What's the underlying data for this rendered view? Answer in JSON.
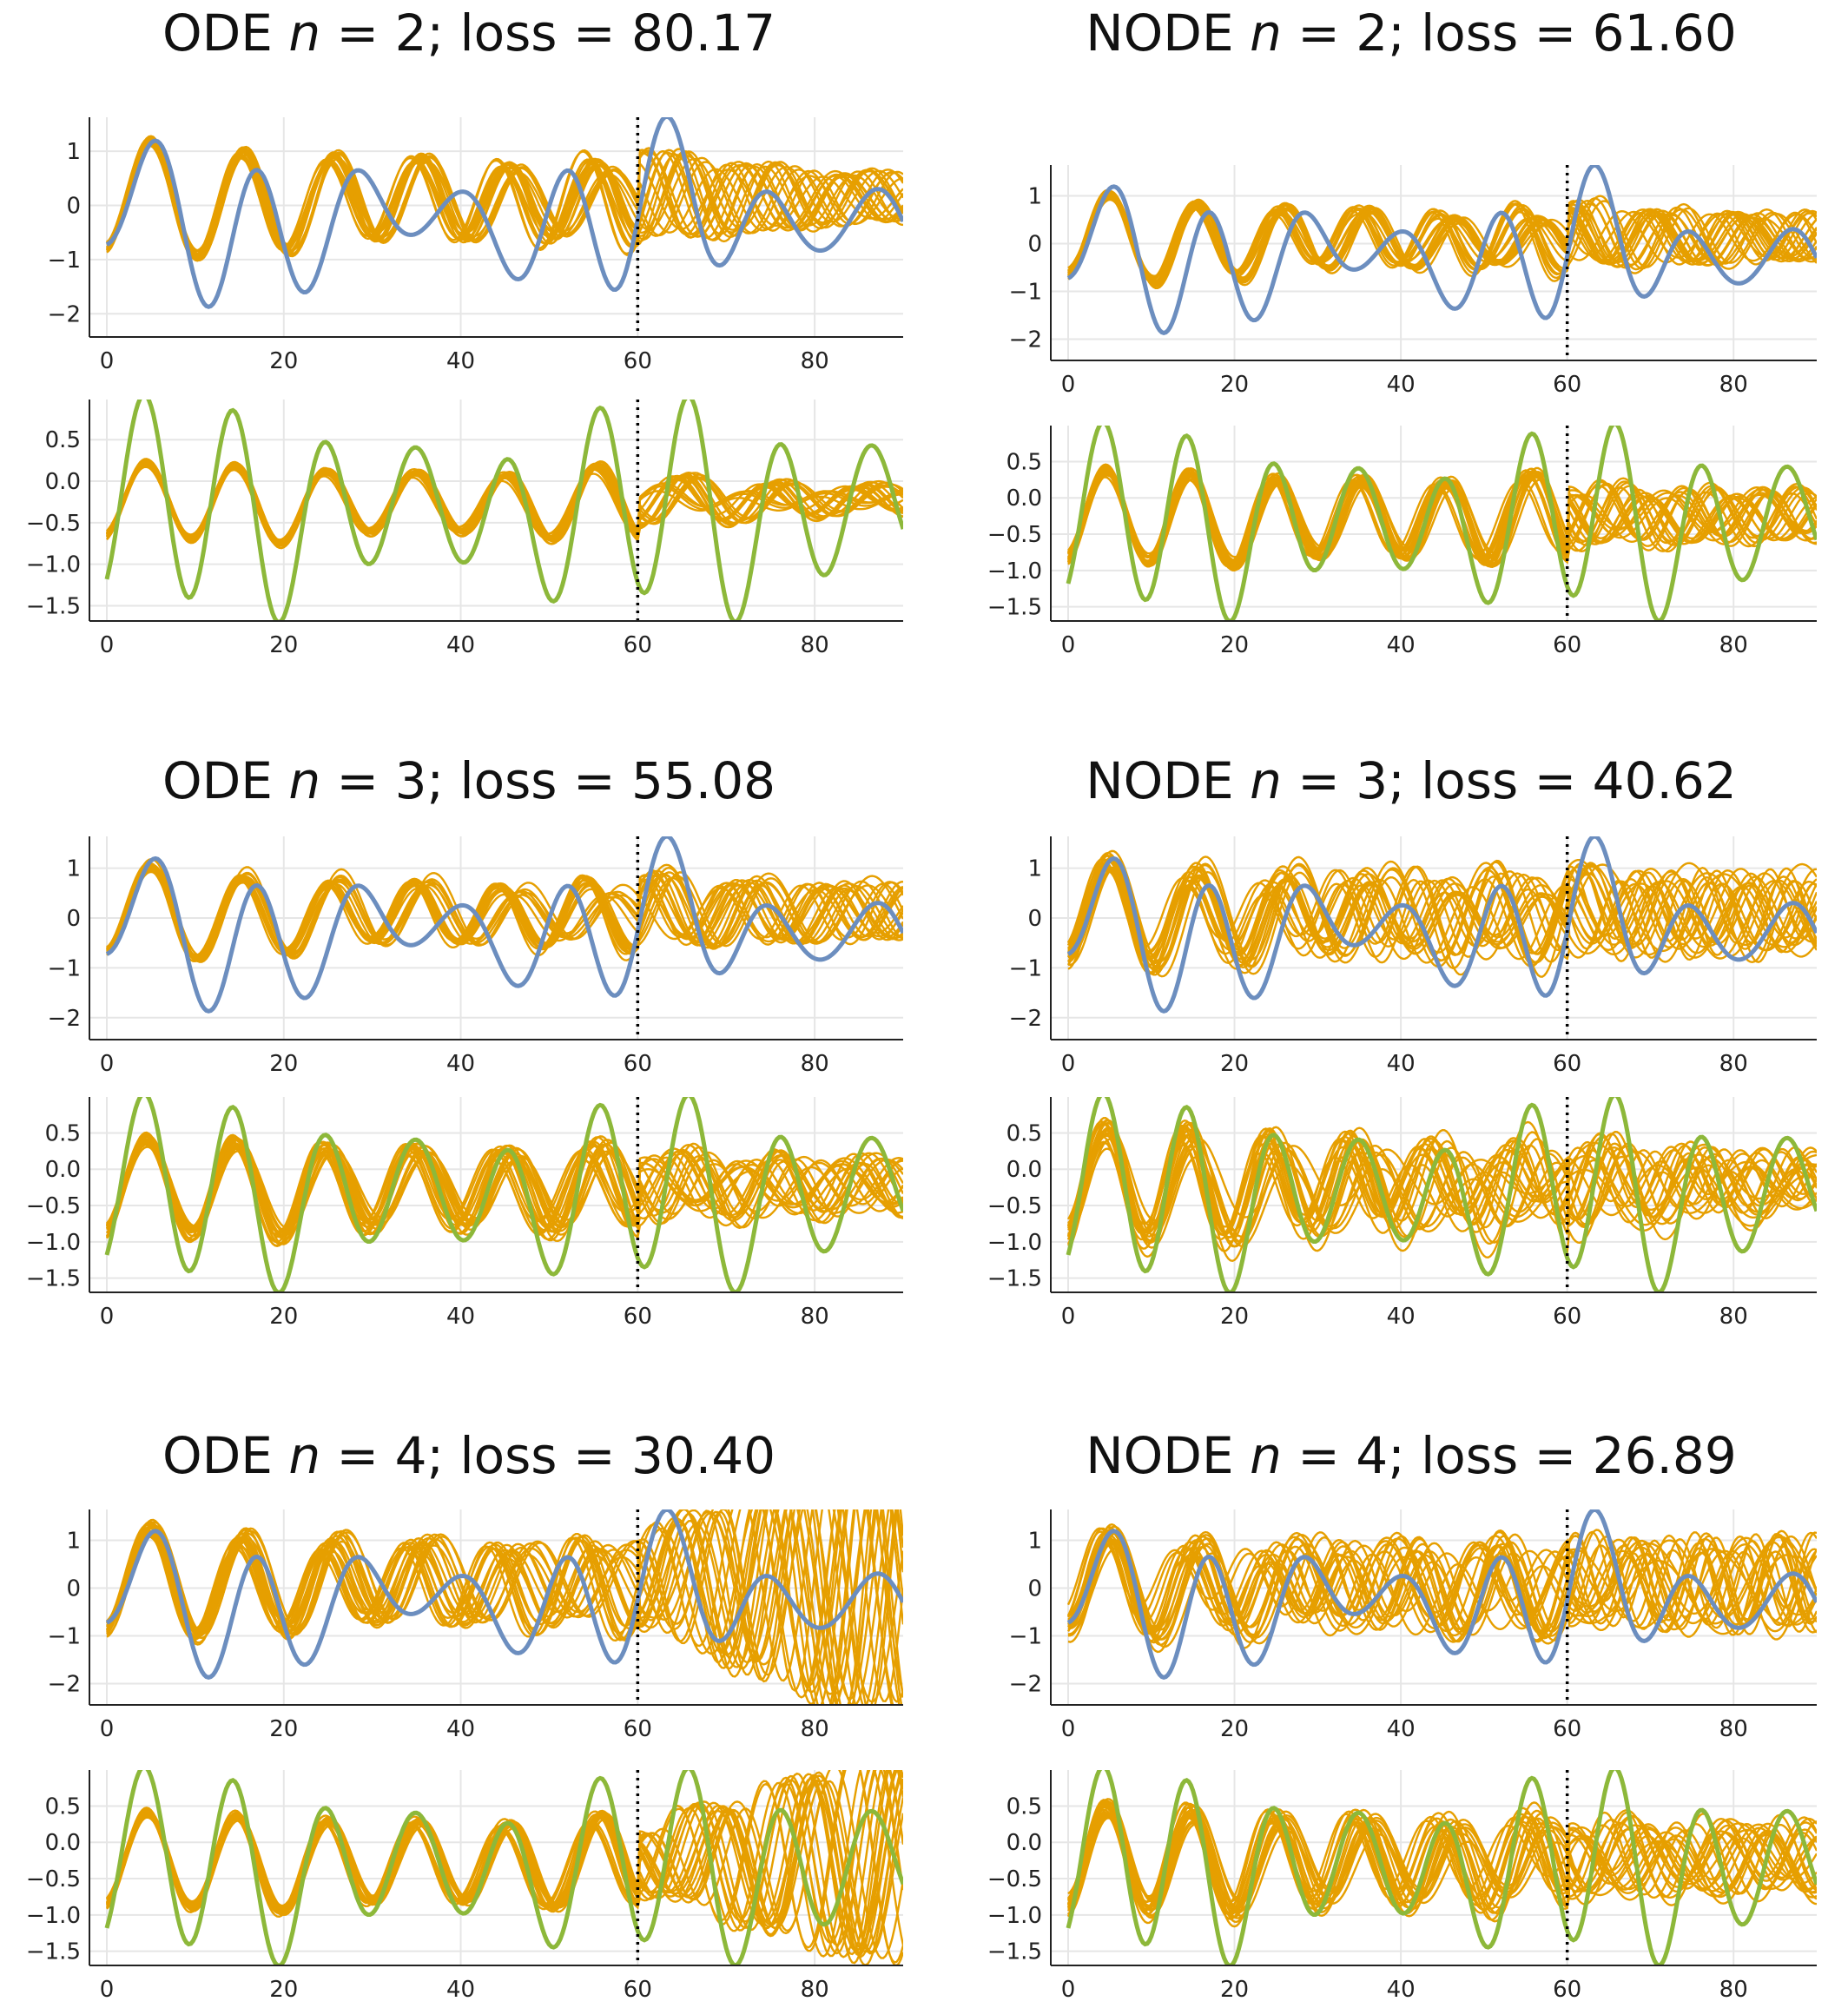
{
  "colors": {
    "observed_y": "#6c8ebf",
    "observed_z": "#8db83a",
    "ensemble": "#e69f00",
    "grid": "#e6e6e6",
    "axis": "#222222",
    "split_line": "#000000"
  },
  "chart_data": [
    {
      "type": "line",
      "title": "ODE n = 2; loss = 80.17",
      "title_parts": {
        "model": "ODE",
        "var": "n",
        "rest": " = 2; loss = 80.17"
      },
      "panels": [
        {
          "variable": "y",
          "xlim": [
            0,
            90
          ],
          "ylim": [
            -2.3,
            1.5
          ],
          "xticks": [
            0,
            20,
            40,
            60,
            80
          ],
          "xtick_labels": [
            "0",
            "20",
            "40",
            "60",
            "80"
          ],
          "yticks": [
            1,
            0,
            -1,
            -2
          ],
          "ytick_labels": [
            "1",
            "0",
            "−1",
            "−2"
          ],
          "observed_color": "blue",
          "train_end": 60,
          "ensemble_size": 20,
          "ensemble_amp_train": 1.0,
          "ensemble_amp_test": 0.55,
          "ensemble_spread": 0.06
        },
        {
          "variable": "z",
          "xlim": [
            0,
            90
          ],
          "ylim": [
            -1.6,
            0.9
          ],
          "xticks": [
            0,
            20,
            40,
            60,
            80
          ],
          "xtick_labels": [
            "0",
            "20",
            "40",
            "60",
            "80"
          ],
          "yticks": [
            0.5,
            0.0,
            -0.5,
            -1.0,
            -1.5
          ],
          "ytick_labels": [
            "0.5",
            "0.0",
            "−0.5",
            "−1.0",
            "−1.5"
          ],
          "observed_color": "green",
          "train_end": 60,
          "ensemble_size": 20,
          "ensemble_amp_train": 0.4,
          "ensemble_amp_test": 0.25,
          "ensemble_spread": 0.04
        }
      ]
    },
    {
      "type": "line",
      "title": "NODE n = 2; loss = 61.60",
      "title_parts": {
        "model": "NODE",
        "var": "n",
        "rest": " = 2; loss = 61.60"
      },
      "panels": [
        {
          "variable": "y",
          "xlim": [
            0,
            90
          ],
          "ylim": [
            -2.3,
            1.5
          ],
          "xticks": [
            0,
            20,
            40,
            60,
            80
          ],
          "xtick_labels": [
            "0",
            "20",
            "40",
            "60",
            "80"
          ],
          "yticks": [
            1,
            0,
            -1,
            -2
          ],
          "ytick_labels": [
            "1",
            "0",
            "−1",
            "−2"
          ],
          "observed_color": "blue",
          "train_end": 60,
          "ensemble_size": 20,
          "ensemble_amp_train": 0.8,
          "ensemble_amp_test": 0.6,
          "ensemble_spread": 0.07
        },
        {
          "variable": "z",
          "xlim": [
            0,
            90
          ],
          "ylim": [
            -1.6,
            0.9
          ],
          "xticks": [
            0,
            20,
            40,
            60,
            80
          ],
          "xtick_labels": [
            "0",
            "20",
            "40",
            "60",
            "80"
          ],
          "yticks": [
            0.5,
            0.0,
            -0.5,
            -1.0,
            -1.5
          ],
          "ytick_labels": [
            "0.5",
            "0.0",
            "−0.5",
            "−1.0",
            "−1.5"
          ],
          "observed_color": "green",
          "train_end": 60,
          "ensemble_size": 20,
          "ensemble_amp_train": 0.7,
          "ensemble_amp_test": 0.6,
          "ensemble_spread": 0.08
        }
      ]
    },
    {
      "type": "line",
      "title": "ODE n = 3; loss = 55.08",
      "title_parts": {
        "model": "ODE",
        "var": "n",
        "rest": " = 3; loss = 55.08"
      },
      "panels": [
        {
          "variable": "y",
          "xlim": [
            0,
            90
          ],
          "ylim": [
            -2.3,
            1.5
          ],
          "xticks": [
            0,
            20,
            40,
            60,
            80
          ],
          "xtick_labels": [
            "0",
            "20",
            "40",
            "60",
            "80"
          ],
          "yticks": [
            1,
            0,
            -1,
            -2
          ],
          "ytick_labels": [
            "1",
            "0",
            "−1",
            "−2"
          ],
          "observed_color": "blue",
          "train_end": 60,
          "ensemble_size": 20,
          "ensemble_amp_train": 0.85,
          "ensemble_amp_test": 0.7,
          "ensemble_spread": 0.08
        },
        {
          "variable": "z",
          "xlim": [
            0,
            90
          ],
          "ylim": [
            -1.6,
            0.9
          ],
          "xticks": [
            0,
            20,
            40,
            60,
            80
          ],
          "xtick_labels": [
            "0",
            "20",
            "40",
            "60",
            "80"
          ],
          "yticks": [
            0.5,
            0.0,
            -0.5,
            -1.0,
            -1.5
          ],
          "ytick_labels": [
            "0.5",
            "0.0",
            "−0.5",
            "−1.0",
            "−1.5"
          ],
          "observed_color": "green",
          "train_end": 60,
          "ensemble_size": 20,
          "ensemble_amp_train": 0.75,
          "ensemble_amp_test": 0.6,
          "ensemble_spread": 0.1
        }
      ]
    },
    {
      "type": "line",
      "title": "NODE n = 3; loss = 40.62",
      "title_parts": {
        "model": "NODE",
        "var": "n",
        "rest": " = 3; loss = 40.62"
      },
      "panels": [
        {
          "variable": "y",
          "xlim": [
            0,
            90
          ],
          "ylim": [
            -2.3,
            1.5
          ],
          "xticks": [
            0,
            20,
            40,
            60,
            80
          ],
          "xtick_labels": [
            "0",
            "20",
            "40",
            "60",
            "80"
          ],
          "yticks": [
            1,
            0,
            -1,
            -2
          ],
          "ytick_labels": [
            "1",
            "0",
            "−1",
            "−2"
          ],
          "observed_color": "blue",
          "train_end": 60,
          "ensemble_size": 20,
          "ensemble_amp_train": 0.95,
          "ensemble_amp_test": 0.9,
          "ensemble_spread": 0.22
        },
        {
          "variable": "z",
          "xlim": [
            0,
            90
          ],
          "ylim": [
            -1.6,
            0.9
          ],
          "xticks": [
            0,
            20,
            40,
            60,
            80
          ],
          "xtick_labels": [
            "0",
            "20",
            "40",
            "60",
            "80"
          ],
          "yticks": [
            0.5,
            0.0,
            -0.5,
            -1.0,
            -1.5
          ],
          "ytick_labels": [
            "0.5",
            "0.0",
            "−0.5",
            "−1.0",
            "−1.5"
          ],
          "observed_color": "green",
          "train_end": 60,
          "ensemble_size": 20,
          "ensemble_amp_train": 0.9,
          "ensemble_amp_test": 0.6,
          "ensemble_spread": 0.2
        }
      ]
    },
    {
      "type": "line",
      "title": "ODE n = 4; loss = 30.40",
      "title_parts": {
        "model": "ODE",
        "var": "n",
        "rest": " = 4; loss = 30.40"
      },
      "panels": [
        {
          "variable": "y",
          "xlim": [
            0,
            90
          ],
          "ylim": [
            -2.3,
            1.5
          ],
          "xticks": [
            0,
            20,
            40,
            60,
            80
          ],
          "xtick_labels": [
            "0",
            "20",
            "40",
            "60",
            "80"
          ],
          "yticks": [
            1,
            0,
            -1,
            -2
          ],
          "ytick_labels": [
            "1",
            "0",
            "−1",
            "−2"
          ],
          "observed_color": "blue",
          "train_end": 60,
          "ensemble_size": 20,
          "ensemble_amp_train": 1.1,
          "ensemble_amp_test": 3.5,
          "ensemble_spread": 0.12
        },
        {
          "variable": "z",
          "xlim": [
            0,
            90
          ],
          "ylim": [
            -1.6,
            0.9
          ],
          "xticks": [
            0,
            20,
            40,
            60,
            80
          ],
          "xtick_labels": [
            "0",
            "20",
            "40",
            "60",
            "80"
          ],
          "yticks": [
            0.5,
            0.0,
            -0.5,
            -1.0,
            -1.5
          ],
          "ytick_labels": [
            "0.5",
            "0.0",
            "−0.5",
            "−1.0",
            "−1.5"
          ],
          "observed_color": "green",
          "train_end": 60,
          "ensemble_size": 20,
          "ensemble_amp_train": 0.75,
          "ensemble_amp_test": 2.5,
          "ensemble_spread": 0.06
        }
      ]
    },
    {
      "type": "line",
      "title": "NODE n = 4; loss = 26.89",
      "title_parts": {
        "model": "NODE",
        "var": "n",
        "rest": " = 4; loss = 26.89"
      },
      "panels": [
        {
          "variable": "y",
          "xlim": [
            0,
            90
          ],
          "ylim": [
            -2.3,
            1.5
          ],
          "xticks": [
            0,
            20,
            40,
            60,
            80
          ],
          "xtick_labels": [
            "0",
            "20",
            "40",
            "60",
            "80"
          ],
          "yticks": [
            1,
            0,
            -1,
            -2
          ],
          "ytick_labels": [
            "1",
            "0",
            "−1",
            "−2"
          ],
          "observed_color": "blue",
          "train_end": 60,
          "ensemble_size": 20,
          "ensemble_amp_train": 1.0,
          "ensemble_amp_test": 1.1,
          "ensemble_spread": 0.3
        },
        {
          "variable": "z",
          "xlim": [
            0,
            90
          ],
          "ylim": [
            -1.6,
            0.9
          ],
          "xticks": [
            0,
            20,
            40,
            60,
            80
          ],
          "xtick_labels": [
            "0",
            "20",
            "40",
            "60",
            "80"
          ],
          "yticks": [
            0.5,
            0.0,
            -0.5,
            -1.0,
            -1.5
          ],
          "ytick_labels": [
            "0.5",
            "0.0",
            "−0.5",
            "−1.0",
            "−1.5"
          ],
          "observed_color": "green",
          "train_end": 60,
          "ensemble_size": 20,
          "ensemble_amp_train": 0.85,
          "ensemble_amp_test": 0.8,
          "ensemble_spread": 0.15
        }
      ]
    }
  ]
}
